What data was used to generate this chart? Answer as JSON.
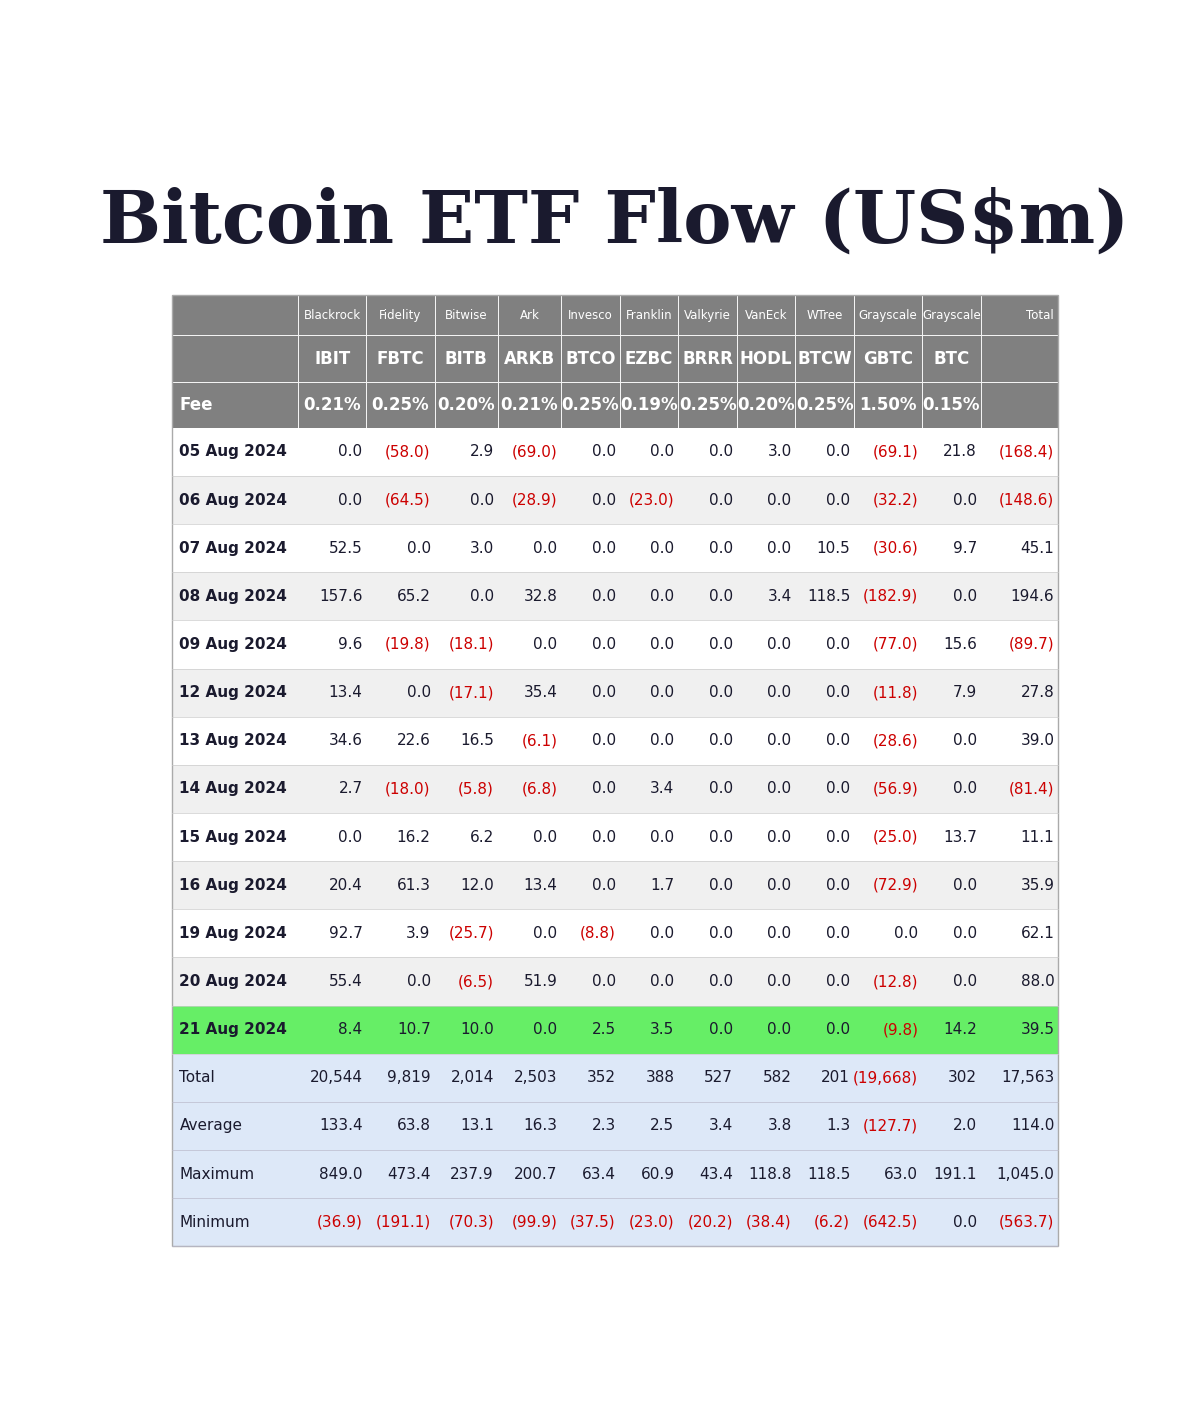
{
  "title": "Bitcoin ETF Flow (US$m)",
  "header_row1": [
    "",
    "Blackrock",
    "Fidelity",
    "Bitwise",
    "Ark",
    "Invesco",
    "Franklin",
    "Valkyrie",
    "VanEck",
    "WTree",
    "Grayscale",
    "Grayscale",
    "Total"
  ],
  "header_row2": [
    "",
    "IBIT",
    "FBTC",
    "BITB",
    "ARKB",
    "BTCO",
    "EZBC",
    "BRRR",
    "HODL",
    "BTCW",
    "GBTC",
    "BTC",
    ""
  ],
  "header_row3": [
    "Fee",
    "0.21%",
    "0.25%",
    "0.20%",
    "0.21%",
    "0.25%",
    "0.19%",
    "0.25%",
    "0.20%",
    "0.25%",
    "1.50%",
    "0.15%",
    ""
  ],
  "dates": [
    "05 Aug 2024",
    "06 Aug 2024",
    "07 Aug 2024",
    "08 Aug 2024",
    "09 Aug 2024",
    "12 Aug 2024",
    "13 Aug 2024",
    "14 Aug 2024",
    "15 Aug 2024",
    "16 Aug 2024",
    "19 Aug 2024",
    "20 Aug 2024",
    "21 Aug 2024"
  ],
  "data": [
    [
      0.0,
      -58.0,
      2.9,
      -69.0,
      0.0,
      0.0,
      0.0,
      3.0,
      0.0,
      -69.1,
      21.8,
      -168.4
    ],
    [
      0.0,
      -64.5,
      0.0,
      -28.9,
      0.0,
      -23.0,
      0.0,
      0.0,
      0.0,
      -32.2,
      0.0,
      -148.6
    ],
    [
      52.5,
      0.0,
      3.0,
      0.0,
      0.0,
      0.0,
      0.0,
      0.0,
      10.5,
      -30.6,
      9.7,
      45.1
    ],
    [
      157.6,
      65.2,
      0.0,
      32.8,
      0.0,
      0.0,
      0.0,
      3.4,
      118.5,
      -182.9,
      0.0,
      194.6
    ],
    [
      9.6,
      -19.8,
      -18.1,
      0.0,
      0.0,
      0.0,
      0.0,
      0.0,
      0.0,
      -77.0,
      15.6,
      -89.7
    ],
    [
      13.4,
      0.0,
      -17.1,
      35.4,
      0.0,
      0.0,
      0.0,
      0.0,
      0.0,
      -11.8,
      7.9,
      27.8
    ],
    [
      34.6,
      22.6,
      16.5,
      -6.1,
      0.0,
      0.0,
      0.0,
      0.0,
      0.0,
      -28.6,
      0.0,
      39.0
    ],
    [
      2.7,
      -18.0,
      -5.8,
      -6.8,
      0.0,
      3.4,
      0.0,
      0.0,
      0.0,
      -56.9,
      0.0,
      -81.4
    ],
    [
      0.0,
      16.2,
      6.2,
      0.0,
      0.0,
      0.0,
      0.0,
      0.0,
      0.0,
      -25.0,
      13.7,
      11.1
    ],
    [
      20.4,
      61.3,
      12.0,
      13.4,
      0.0,
      1.7,
      0.0,
      0.0,
      0.0,
      -72.9,
      0.0,
      35.9
    ],
    [
      92.7,
      3.9,
      -25.7,
      0.0,
      -8.8,
      0.0,
      0.0,
      0.0,
      0.0,
      0.0,
      0.0,
      62.1
    ],
    [
      55.4,
      0.0,
      -6.5,
      51.9,
      0.0,
      0.0,
      0.0,
      0.0,
      0.0,
      -12.8,
      0.0,
      88.0
    ],
    [
      8.4,
      10.7,
      10.0,
      0.0,
      2.5,
      3.5,
      0.0,
      0.0,
      0.0,
      -9.8,
      14.2,
      39.5
    ]
  ],
  "summary_rows": {
    "Total": [
      "20,544",
      "9,819",
      "2,014",
      "2,503",
      "352",
      "388",
      "527",
      "582",
      "201",
      "(19,668)",
      "302",
      "17,563"
    ],
    "Average": [
      "133.4",
      "63.8",
      "13.1",
      "16.3",
      "2.3",
      "2.5",
      "3.4",
      "3.8",
      "1.3",
      "(127.7)",
      "2.0",
      "114.0"
    ],
    "Maximum": [
      "849.0",
      "473.4",
      "237.9",
      "200.7",
      "63.4",
      "60.9",
      "43.4",
      "118.8",
      "118.5",
      "63.0",
      "191.1",
      "1,045.0"
    ],
    "Minimum": [
      "(36.9)",
      "(191.1)",
      "(70.3)",
      "(99.9)",
      "(37.5)",
      "(23.0)",
      "(20.2)",
      "(38.4)",
      "(6.2)",
      "(642.5)",
      "0.0",
      "(563.7)"
    ]
  },
  "summary_neg": {
    "Total": [
      false,
      false,
      false,
      false,
      false,
      false,
      false,
      false,
      false,
      true,
      false,
      false
    ],
    "Average": [
      false,
      false,
      false,
      false,
      false,
      false,
      false,
      false,
      false,
      true,
      false,
      false
    ],
    "Maximum": [
      false,
      false,
      false,
      false,
      false,
      false,
      false,
      false,
      false,
      false,
      false,
      false
    ],
    "Minimum": [
      true,
      true,
      true,
      true,
      true,
      true,
      true,
      true,
      true,
      true,
      false,
      true
    ]
  },
  "highlight_row": 12,
  "header_bg": "#808080",
  "header_text": "#ffffff",
  "row_bg_even": "#ffffff",
  "row_bg_odd": "#f0f0f0",
  "highlight_bg": "#66ee66",
  "summary_bg": "#dde8f8",
  "negative_color": "#cc0000",
  "positive_color": "#1a1a2e",
  "title_color": "#1a1a2e",
  "title_fontsize": 52,
  "header1_fontsize": 8.5,
  "header2_fontsize": 12,
  "header3_fontsize": 12,
  "data_fontsize": 11,
  "summary_fontsize": 11
}
